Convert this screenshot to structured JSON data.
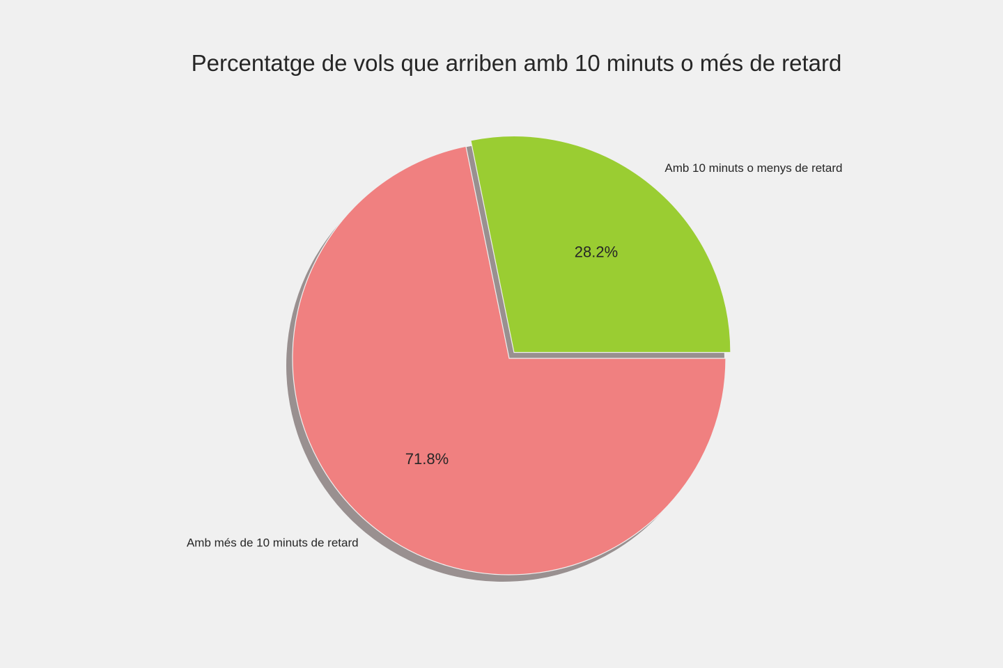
{
  "chart_data": {
    "type": "pie",
    "title": "Percentatge de vols que arriben amb 10 minuts o més de retard",
    "slices": [
      {
        "label": "Amb 10 minuts o menys de retard",
        "value": 28.2,
        "pct_label": "28.2%",
        "color": "#9acd32",
        "exploded": true
      },
      {
        "label": "Amb més de 10 minuts de retard",
        "value": 71.8,
        "pct_label": "71.8%",
        "color": "#f08080",
        "exploded": false
      }
    ],
    "start_angle_deg": 0,
    "direction": "counterclockwise",
    "shadow": true,
    "shadow_color": "#999090",
    "background": "#f0f0f0"
  }
}
